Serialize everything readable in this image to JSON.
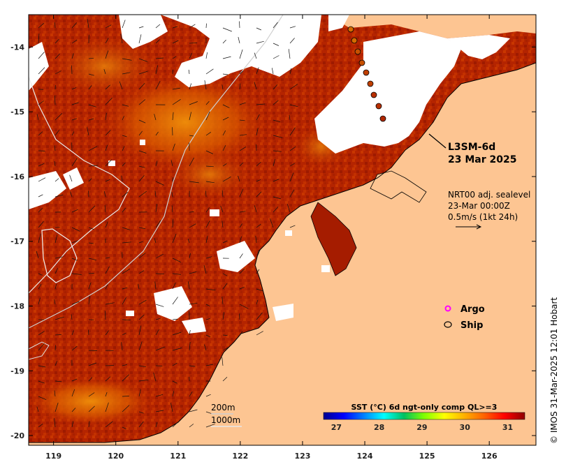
{
  "product": {
    "name": "L3SM-6d",
    "date": "23 Mar 2025"
  },
  "current_info": {
    "line1": "NRT00 adj. sealevel",
    "line2": "23-Mar 00:00Z",
    "line3": "0.5m/s (1kt 24h)"
  },
  "legend": {
    "argo_label": "Argo",
    "ship_label": "Ship",
    "argo_color": "#ff00ff"
  },
  "bathy": {
    "label_200": "200m",
    "label_1000": "1000m"
  },
  "colorbar": {
    "title": "SST (°C) 6d ngt-only comp QL>=3",
    "ticks": [
      "27",
      "28",
      "29",
      "30",
      "31"
    ],
    "range": [
      26.7,
      31.4
    ],
    "stops": [
      "#00008f",
      "#0000ff",
      "#0080ff",
      "#00ffff",
      "#00c060",
      "#80ff00",
      "#ffff00",
      "#ffb000",
      "#ff6000",
      "#ff0000",
      "#900000"
    ]
  },
  "axes": {
    "y_ticks": [
      "-14",
      "-15",
      "-16",
      "-17",
      "-18",
      "-19",
      "-20"
    ],
    "x_ticks": [
      "119",
      "120",
      "121",
      "122",
      "123",
      "124",
      "125",
      "126"
    ],
    "lon_range": [
      118.6,
      126.75
    ],
    "lat_range": [
      -20.15,
      -13.5
    ]
  },
  "colors": {
    "land": "#fdc592",
    "sst_hot": "#a51c00",
    "sst_warm": "#d94a00",
    "sst_mid": "#f08c00"
  },
  "credit": "© IMOS 31-Mar-2025 12:01 Hobart"
}
